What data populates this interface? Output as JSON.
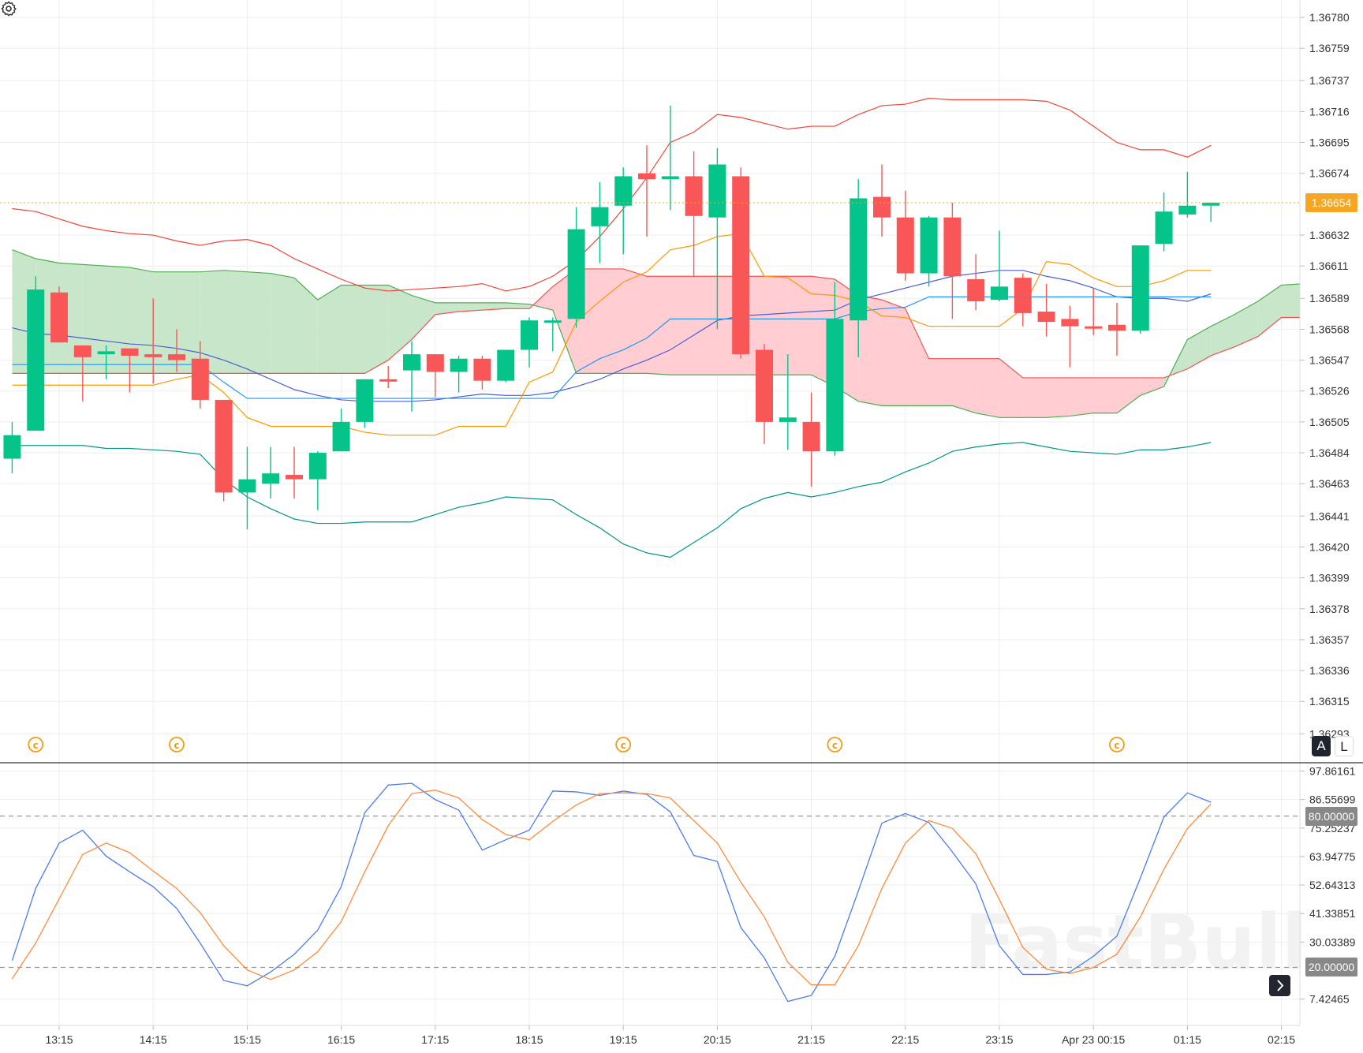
{
  "colors": {
    "up": "#05c48a",
    "down": "#f95757",
    "last_price": "#f5a623",
    "cloud_bull": "#c8e6c9",
    "cloud_bear": "#ffcdd2",
    "span_a": "#4caf50",
    "span_b": "#ef5350",
    "grid": "#eeeeee",
    "marker": "#f39c12"
  },
  "chart_data": [
    {
      "type": "candlestick",
      "pane": "price",
      "ylim": [
        1.36293,
        1.3678
      ],
      "grid": true,
      "y_ticks": [
        "1.36780",
        "1.36759",
        "1.36737",
        "1.36716",
        "1.36695",
        "1.36674",
        "1.36632",
        "1.36611",
        "1.36589",
        "1.36568",
        "1.36547",
        "1.36526",
        "1.36505",
        "1.36484",
        "1.36463",
        "1.36441",
        "1.36420",
        "1.36399",
        "1.36378",
        "1.36357",
        "1.36336",
        "1.36315",
        "1.36293"
      ],
      "last_price": "1.36654",
      "candles_ohlc": [
        [
          1.3648,
          1.36505,
          1.3647,
          1.36496
        ],
        [
          1.36499,
          1.36604,
          1.36499,
          1.36595
        ],
        [
          1.36593,
          1.36597,
          1.36559,
          1.36559
        ],
        [
          1.36557,
          1.36557,
          1.36519,
          1.36549
        ],
        [
          1.36551,
          1.36557,
          1.36534,
          1.36553
        ],
        [
          1.36555,
          1.36555,
          1.36525,
          1.3655
        ],
        [
          1.36551,
          1.36589,
          1.36531,
          1.36549
        ],
        [
          1.36551,
          1.36568,
          1.36539,
          1.36547
        ],
        [
          1.36548,
          1.3656,
          1.36514,
          1.3652
        ],
        [
          1.3652,
          1.3652,
          1.36451,
          1.36457
        ],
        [
          1.36457,
          1.36488,
          1.36432,
          1.36466
        ],
        [
          1.36463,
          1.36488,
          1.36453,
          1.3647
        ],
        [
          1.36469,
          1.36488,
          1.36453,
          1.36466
        ],
        [
          1.36466,
          1.36485,
          1.36445,
          1.36484
        ],
        [
          1.36485,
          1.36514,
          1.36485,
          1.36505
        ],
        [
          1.36505,
          1.36534,
          1.36501,
          1.36534
        ],
        [
          1.36534,
          1.36543,
          1.36528,
          1.36533
        ],
        [
          1.3654,
          1.3656,
          1.36512,
          1.36551
        ],
        [
          1.36551,
          1.36551,
          1.36522,
          1.36539
        ],
        [
          1.36539,
          1.3655,
          1.36525,
          1.36548
        ],
        [
          1.36548,
          1.3655,
          1.36527,
          1.36533
        ],
        [
          1.36533,
          1.36554,
          1.36532,
          1.36554
        ],
        [
          1.36554,
          1.36576,
          1.36542,
          1.36574
        ],
        [
          1.36573,
          1.36576,
          1.36553,
          1.36574
        ],
        [
          1.36575,
          1.36651,
          1.36569,
          1.36636
        ],
        [
          1.36638,
          1.36668,
          1.36613,
          1.36651
        ],
        [
          1.36652,
          1.36678,
          1.36619,
          1.36672
        ],
        [
          1.36674,
          1.36693,
          1.36631,
          1.3667
        ],
        [
          1.3667,
          1.3672,
          1.36649,
          1.36672
        ],
        [
          1.36672,
          1.36689,
          1.36604,
          1.36645
        ],
        [
          1.36644,
          1.36691,
          1.36568,
          1.3668
        ],
        [
          1.36672,
          1.36678,
          1.36548,
          1.36551
        ],
        [
          1.36554,
          1.36558,
          1.3649,
          1.36505
        ],
        [
          1.36505,
          1.36551,
          1.36486,
          1.36508
        ],
        [
          1.36505,
          1.36525,
          1.36461,
          1.36485
        ],
        [
          1.36485,
          1.366,
          1.36482,
          1.36575
        ],
        [
          1.36574,
          1.3667,
          1.36549,
          1.36657
        ],
        [
          1.36658,
          1.3668,
          1.36631,
          1.36644
        ],
        [
          1.36644,
          1.36662,
          1.36601,
          1.36606
        ],
        [
          1.36606,
          1.36645,
          1.36597,
          1.36644
        ],
        [
          1.36644,
          1.36654,
          1.36575,
          1.36604
        ],
        [
          1.36602,
          1.36619,
          1.36581,
          1.36587
        ],
        [
          1.36588,
          1.36635,
          1.36587,
          1.36597
        ],
        [
          1.36603,
          1.36606,
          1.3657,
          1.36579
        ],
        [
          1.3658,
          1.36599,
          1.36563,
          1.36573
        ],
        [
          1.36575,
          1.36584,
          1.36542,
          1.3657
        ],
        [
          1.3657,
          1.36596,
          1.36564,
          1.36569
        ],
        [
          1.36571,
          1.36586,
          1.3655,
          1.36567
        ],
        [
          1.36567,
          1.36625,
          1.36565,
          1.36625
        ],
        [
          1.36626,
          1.36661,
          1.36621,
          1.36648
        ],
        [
          1.36646,
          1.36675,
          1.36644,
          1.36652
        ],
        [
          1.36652,
          1.36652,
          1.36641,
          1.36654
        ]
      ],
      "overlays": [
        {
          "color": "#f44336",
          "values": [
            1.3665,
            1.36648,
            1.36643,
            1.36638,
            1.36635,
            1.36633,
            1.36632,
            1.36628,
            1.36625,
            1.36628,
            1.36629,
            1.36625,
            1.36616,
            1.36609,
            1.36602,
            1.36596,
            1.36594,
            1.36595,
            1.36596,
            1.36597,
            1.36599,
            1.36594,
            1.36597,
            1.36604,
            1.36615,
            1.36631,
            1.3665,
            1.36671,
            1.36695,
            1.36702,
            1.36714,
            1.36712,
            1.36708,
            1.36704,
            1.36706,
            1.36706,
            1.36714,
            1.3672,
            1.36721,
            1.36725,
            1.36724,
            1.36724,
            1.36724,
            1.36724,
            1.36723,
            1.36717,
            1.36706,
            1.36695,
            1.3669,
            1.3669,
            1.36685,
            1.36693
          ]
        },
        {
          "color": "#009688",
          "values": [
            1.36489,
            1.36489,
            1.36489,
            1.36489,
            1.36487,
            1.36487,
            1.36486,
            1.36485,
            1.36483,
            1.36466,
            1.36454,
            1.36446,
            1.36439,
            1.36436,
            1.36436,
            1.36437,
            1.36437,
            1.36437,
            1.36442,
            1.36447,
            1.3645,
            1.36454,
            1.36453,
            1.36452,
            1.36442,
            1.36433,
            1.36422,
            1.36416,
            1.36413,
            1.36423,
            1.36433,
            1.36446,
            1.36453,
            1.36457,
            1.36454,
            1.36457,
            1.36461,
            1.36464,
            1.36471,
            1.36477,
            1.36485,
            1.36488,
            1.3649,
            1.36491,
            1.36488,
            1.36485,
            1.36484,
            1.36483,
            1.36486,
            1.36486,
            1.36488,
            1.36491
          ]
        },
        {
          "color": "#4a5fd8",
          "values": [
            1.36569,
            1.36565,
            1.36564,
            1.36562,
            1.3656,
            1.36558,
            1.36557,
            1.36555,
            1.36552,
            1.36547,
            1.36541,
            1.36534,
            1.36527,
            1.36523,
            1.3652,
            1.36519,
            1.36519,
            1.36519,
            1.3652,
            1.36522,
            1.36524,
            1.36523,
            1.36523,
            1.36525,
            1.36529,
            1.36534,
            1.36541,
            1.36547,
            1.36554,
            1.36564,
            1.36574,
            1.36577,
            1.36578,
            1.36579,
            1.3658,
            1.36581,
            1.36588,
            1.36592,
            1.36596,
            1.366,
            1.36604,
            1.36606,
            1.36608,
            1.36608,
            1.36604,
            1.36601,
            1.36596,
            1.3659,
            1.36589,
            1.36589,
            1.36587,
            1.36592
          ]
        },
        {
          "color": "#2196f3",
          "values": [
            1.36544,
            1.36544,
            1.36544,
            1.36544,
            1.36544,
            1.36544,
            1.36544,
            1.36544,
            1.36544,
            1.36532,
            1.36521,
            1.36521,
            1.36521,
            1.36521,
            1.36521,
            1.36521,
            1.36521,
            1.36521,
            1.36521,
            1.36521,
            1.36521,
            1.36521,
            1.36521,
            1.36521,
            1.36539,
            1.36548,
            1.36554,
            1.36562,
            1.36575,
            1.36575,
            1.36575,
            1.36575,
            1.36575,
            1.36575,
            1.36575,
            1.36575,
            1.3658,
            1.36582,
            1.36583,
            1.3659,
            1.3659,
            1.3659,
            1.3659,
            1.3659,
            1.3659,
            1.3659,
            1.3659,
            1.3659,
            1.3659,
            1.3659,
            1.3659,
            1.3659
          ]
        },
        {
          "color": "#ff9800",
          "values": [
            1.3653,
            1.3653,
            1.3653,
            1.3653,
            1.3653,
            1.3653,
            1.3653,
            1.36534,
            1.36537,
            1.36525,
            1.36508,
            1.36502,
            1.36502,
            1.36502,
            1.36502,
            1.36498,
            1.36496,
            1.36496,
            1.36496,
            1.36502,
            1.36502,
            1.36502,
            1.36532,
            1.36539,
            1.36573,
            1.36587,
            1.366,
            1.36607,
            1.36622,
            1.36625,
            1.36631,
            1.36633,
            1.36604,
            1.36603,
            1.36592,
            1.36591,
            1.36587,
            1.36577,
            1.36576,
            1.3657,
            1.3657,
            1.3657,
            1.3657,
            1.36582,
            1.36614,
            1.36612,
            1.36603,
            1.36597,
            1.36597,
            1.36601,
            1.36608,
            1.36608
          ]
        }
      ],
      "cloud": {
        "span_a": [
          1.36622,
          1.36616,
          1.36613,
          1.36612,
          1.36611,
          1.3661,
          1.36607,
          1.36607,
          1.36607,
          1.36608,
          1.36607,
          1.36606,
          1.36603,
          1.36588,
          1.36598,
          1.36598,
          1.36598,
          1.36591,
          1.36586,
          1.36586,
          1.36586,
          1.36586,
          1.36585,
          1.36581,
          1.36538,
          1.36538,
          1.36538,
          1.36538,
          1.36537,
          1.36537,
          1.36537,
          1.36537,
          1.36537,
          1.36537,
          1.36537,
          1.36529,
          1.36519,
          1.36516,
          1.36516,
          1.36516,
          1.36516,
          1.36511,
          1.36508,
          1.36508,
          1.36508,
          1.36509,
          1.36511,
          1.36511,
          1.36523,
          1.36529,
          1.36561,
          1.3657,
          1.36578,
          1.36587,
          1.36598,
          1.36599
        ],
        "span_b": [
          1.36538,
          1.36538,
          1.36538,
          1.36538,
          1.36538,
          1.36538,
          1.36538,
          1.36538,
          1.36538,
          1.36538,
          1.36538,
          1.36538,
          1.36538,
          1.36538,
          1.36538,
          1.36538,
          1.36547,
          1.36561,
          1.36578,
          1.3658,
          1.36581,
          1.36582,
          1.36582,
          1.36597,
          1.36609,
          1.36609,
          1.36609,
          1.36604,
          1.36604,
          1.36604,
          1.36604,
          1.36604,
          1.36604,
          1.36604,
          1.36604,
          1.36602,
          1.36591,
          1.36588,
          1.36582,
          1.36548,
          1.36548,
          1.36548,
          1.36548,
          1.36535,
          1.36535,
          1.36535,
          1.36535,
          1.36535,
          1.36535,
          1.36535,
          1.36541,
          1.3655,
          1.36556,
          1.36563,
          1.36576,
          1.36576
        ]
      },
      "event_markers": {
        "icon": "copyright-circle-icon",
        "glyph": "©",
        "candle_indices": [
          1,
          7,
          26,
          35,
          47
        ]
      }
    },
    {
      "type": "line",
      "pane": "stochastic",
      "ylim": [
        -3.2,
        101.3
      ],
      "grid": true,
      "y_ticks": [
        "97.86161",
        "86.55699",
        "75.25237",
        "63.94775",
        "52.64313",
        "41.33851",
        "30.03389",
        "7.42465"
      ],
      "levels": [
        {
          "value": 80,
          "label": "80.00000"
        },
        {
          "value": 20,
          "label": "20.00000"
        }
      ],
      "series": [
        {
          "color": "#4a7cf0",
          "values": [
            22.7,
            51.3,
            69.3,
            74.4,
            64.1,
            57.9,
            52.0,
            43.4,
            29.6,
            14.8,
            12.7,
            18.2,
            25.2,
            34.8,
            52.0,
            81.3,
            92.3,
            93.0,
            86.5,
            82.4,
            66.5,
            70.6,
            74.4,
            89.9,
            89.6,
            88.2,
            89.9,
            88.6,
            81.7,
            64.4,
            62.0,
            35.8,
            23.8,
            6.5,
            8.9,
            24.4,
            50.3,
            77.2,
            81.0,
            77.5,
            65.8,
            53.1,
            28.6,
            17.2,
            17.2,
            18.2,
            24.4,
            32.4,
            55.5,
            79.6,
            89.2,
            85.5
          ]
        },
        {
          "color": "#ff8a3d",
          "values": [
            15.5,
            29.6,
            47.2,
            64.8,
            69.3,
            65.5,
            58.2,
            51.3,
            41.7,
            28.6,
            19.0,
            15.2,
            19.0,
            26.2,
            38.2,
            57.9,
            76.2,
            88.9,
            90.3,
            87.2,
            78.6,
            72.7,
            70.6,
            77.9,
            84.4,
            88.9,
            89.2,
            88.9,
            87.2,
            78.2,
            69.3,
            53.8,
            40.0,
            22.0,
            13.1,
            13.1,
            28.6,
            51.3,
            69.3,
            78.2,
            75.1,
            65.1,
            46.9,
            27.9,
            19.3,
            17.6,
            20.0,
            25.2,
            40.0,
            58.9,
            75.1,
            84.8
          ]
        }
      ]
    }
  ],
  "time_axis": {
    "labels": [
      {
        "label": "13:15",
        "index": 2
      },
      {
        "label": "14:15",
        "index": 6
      },
      {
        "label": "15:15",
        "index": 10
      },
      {
        "label": "16:15",
        "index": 14
      },
      {
        "label": "17:15",
        "index": 18
      },
      {
        "label": "18:15",
        "index": 22
      },
      {
        "label": "19:15",
        "index": 26
      },
      {
        "label": "20:15",
        "index": 30
      },
      {
        "label": "21:15",
        "index": 34
      },
      {
        "label": "22:15",
        "index": 38
      },
      {
        "label": "23:15",
        "index": 42
      },
      {
        "label": "Apr 23 00:15",
        "index": 46
      },
      {
        "label": "01:15",
        "index": 50
      },
      {
        "label": "02:15",
        "index": 54
      }
    ]
  },
  "controls": {
    "auto_scale": "A",
    "log_scale": "L",
    "scroll_right_icon": "chevron-right-icon",
    "settings_icon": "gear-icon"
  },
  "watermark": "FastBull"
}
